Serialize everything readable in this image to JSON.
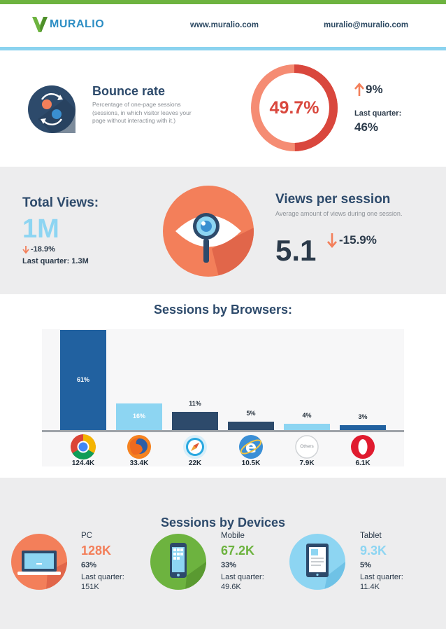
{
  "header": {
    "logo_text": "MURALIO",
    "website": "www.muralio.com",
    "email": "muralio@muralio.com"
  },
  "bounce": {
    "title": "Bounce rate",
    "description": "Percentage of one-page sessions (sessions, in which visitor leaves your page without interacting with it.)",
    "value": "49.7%",
    "value_fraction": 0.497,
    "change": "9%",
    "change_direction": "up",
    "last_quarter_label": "Last quarter:",
    "last_quarter_value": "46%"
  },
  "total_views": {
    "title": "Total Views:",
    "value": "1M",
    "change": "-18.9%",
    "change_direction": "down",
    "last_quarter": "Last quarter: 1.3M"
  },
  "views_per_session": {
    "title": "Views per session",
    "description": "Average amount of views during one session.",
    "value": "5.1",
    "change": "-15.9%",
    "change_direction": "down"
  },
  "browsers": {
    "title": "Sessions by Browsers:",
    "items": [
      {
        "icon": "chrome-icon",
        "count": "124.4K"
      },
      {
        "icon": "firefox-icon",
        "count": "33.4K"
      },
      {
        "icon": "safari-icon",
        "count": "22K"
      },
      {
        "icon": "internet-explorer-icon",
        "count": "10.5K"
      },
      {
        "icon": "others-icon",
        "icon_text": "Others",
        "count": "7.9K"
      },
      {
        "icon": "opera-icon",
        "count": "6.1K"
      }
    ]
  },
  "chart_data": {
    "type": "bar",
    "categories": [
      "Chrome",
      "Firefox",
      "Safari",
      "Internet Explorer",
      "Others",
      "Opera"
    ],
    "values": [
      61,
      16,
      11,
      5,
      4,
      3
    ],
    "value_labels": [
      "61%",
      "16%",
      "11%",
      "5%",
      "4%",
      "3%"
    ],
    "ylim": [
      0,
      61
    ],
    "grid": false,
    "colors": [
      "#2161a0",
      "#8dd5f2",
      "#2d4a6b",
      "#2d4a6b",
      "#8dd5f2",
      "#2161a0"
    ]
  },
  "devices": {
    "title": "Sessions by Devices",
    "items": [
      {
        "name": "PC",
        "value": "128K",
        "pct": "63%",
        "last_quarter": "Last quarter: 151K",
        "color": "#f37f5a",
        "icon": "laptop-icon"
      },
      {
        "name": "Mobile",
        "value": "67.2K",
        "pct": "33%",
        "last_quarter": "Last quarter: 49.6K",
        "color": "#6db33f",
        "icon": "mobile-phone-icon"
      },
      {
        "name": "Tablet",
        "value": "9.3K",
        "pct": "5%",
        "last_quarter": "Last quarter: 11.4K",
        "color": "#8dd5f2",
        "icon": "tablet-icon"
      }
    ]
  },
  "colors": {
    "green": "#6db33f",
    "light_blue": "#8dd5f2",
    "navy": "#2d4a6b",
    "coral": "#f37f5a",
    "red": "#d9473d"
  }
}
